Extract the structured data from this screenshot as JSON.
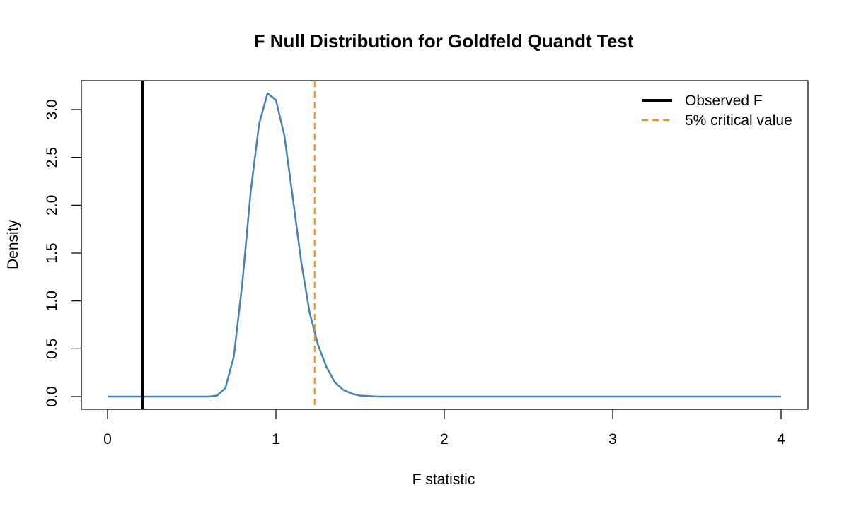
{
  "chart_data": {
    "type": "line",
    "title": "F Null Distribution for Goldfeld Quandt Test",
    "xlabel": "F statistic",
    "ylabel": "Density",
    "xlim": [
      0,
      4
    ],
    "ylim": [
      0,
      3.2
    ],
    "x_ticks": [
      "0",
      "1",
      "2",
      "3",
      "4"
    ],
    "y_ticks": [
      "0.0",
      "0.5",
      "1.0",
      "1.5",
      "2.0",
      "2.5",
      "3.0"
    ],
    "legend_position": "top-right",
    "series": [
      {
        "name": "",
        "color": "#4682B4",
        "x": [
          0,
          0.6,
          0.65,
          0.7,
          0.75,
          0.8,
          0.85,
          0.9,
          0.95,
          1.0,
          1.05,
          1.1,
          1.15,
          1.2,
          1.25,
          1.3,
          1.35,
          1.4,
          1.45,
          1.5,
          1.55,
          1.6,
          2,
          3,
          4
        ],
        "y": [
          0,
          0,
          0.01,
          0.09,
          0.42,
          1.18,
          2.14,
          2.85,
          3.17,
          3.1,
          2.73,
          2.08,
          1.41,
          0.88,
          0.54,
          0.31,
          0.15,
          0.07,
          0.03,
          0.01,
          0.005,
          0,
          0,
          0,
          0
        ]
      }
    ],
    "vlines": [
      {
        "name": "Observed F",
        "x": 0.21,
        "color": "#000000",
        "style": "solid"
      },
      {
        "name": "5% critical value",
        "x": 1.23,
        "color": "#FF8C00",
        "style": "dashed"
      }
    ]
  }
}
